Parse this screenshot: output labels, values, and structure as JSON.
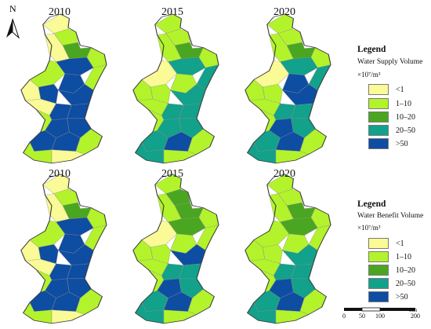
{
  "top_row": {
    "years": [
      "2010",
      "2015",
      "2020"
    ],
    "legend": {
      "title": "Legend",
      "subtitle": "Water Supply Volume",
      "unit": "×10⁷/m³",
      "classes": [
        "<1",
        "1–10",
        "10–20",
        "20–50",
        ">50"
      ]
    }
  },
  "bottom_row": {
    "years": [
      "2010",
      "2015",
      "2020"
    ],
    "legend": {
      "title": "Legend",
      "subtitle": "Water Benefit Volume",
      "unit": "×10⁷/m³",
      "classes": [
        "<1",
        "1–10",
        "10–20",
        "20–50",
        ">50"
      ]
    }
  },
  "north_arrow": {
    "label": "N",
    "icon": "north-arrow-icon"
  },
  "scale_bar": {
    "unit": "Km",
    "ticks": [
      "0",
      "50",
      "100",
      "200"
    ]
  },
  "colors": {
    "lt1": "#fafa96",
    "c1_10": "#b3f32b",
    "c10_20": "#4aa621",
    "c20_50": "#12a18b",
    "gt50": "#0d4da2"
  }
}
